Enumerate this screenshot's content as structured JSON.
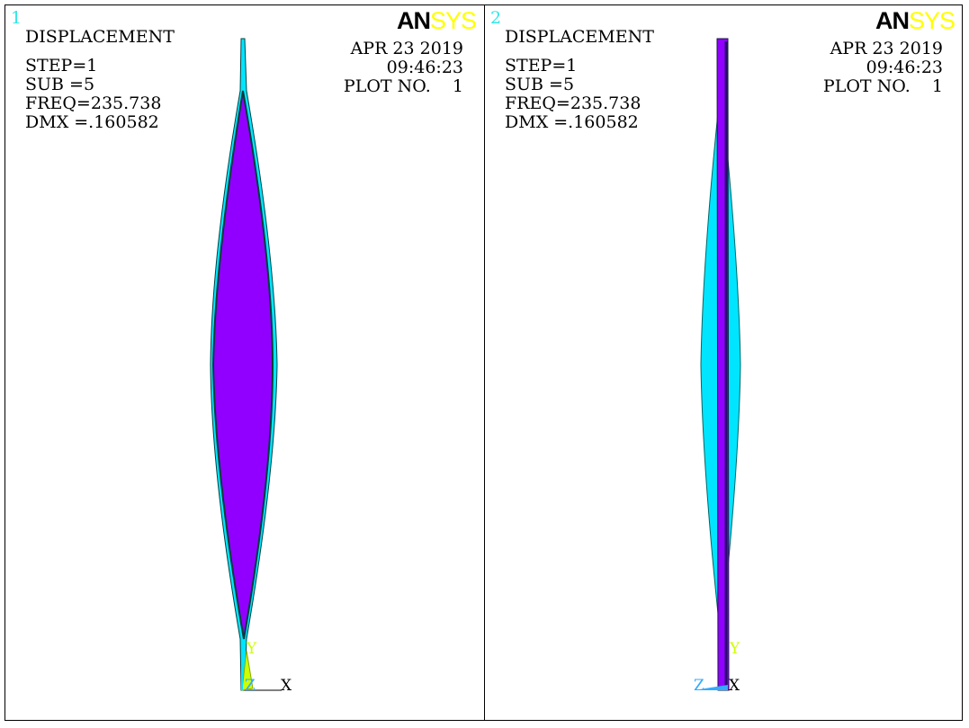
{
  "viewports": [
    {
      "number": "1",
      "logo": {
        "part1": "AN",
        "part2": "SYS"
      },
      "info": {
        "title": "DISPLACEMENT",
        "step": "STEP=1",
        "sub": "SUB =5",
        "freq": "FREQ=235.738",
        "dmx": "DMX =.160582"
      },
      "header": {
        "date": "APR 23 2019",
        "time": "09:46:23",
        "plot_no": "PLOT NO.    1"
      },
      "triad": {
        "y": "Y",
        "z": "Z",
        "x": "X"
      }
    },
    {
      "number": "2",
      "logo": {
        "part1": "AN",
        "part2": "SYS"
      },
      "info": {
        "title": "DISPLACEMENT",
        "step": "STEP=1",
        "sub": "SUB =5",
        "freq": "FREQ=235.738",
        "dmx": "DMX =.160582"
      },
      "header": {
        "date": "APR 23 2019",
        "time": "09:46:23",
        "plot_no": "PLOT NO.    1"
      },
      "triad": {
        "y": "Y",
        "z": "Z",
        "x": "X"
      }
    }
  ],
  "colors": {
    "deformed_fill": "#9100ff",
    "undeformed_outline": "#00e5ff",
    "axis_y": "#ccff00",
    "axis_z": "#33aaff",
    "viewport_number": "#33e6e6",
    "logo_an": "#000000",
    "logo_sys": "#ffff00"
  }
}
